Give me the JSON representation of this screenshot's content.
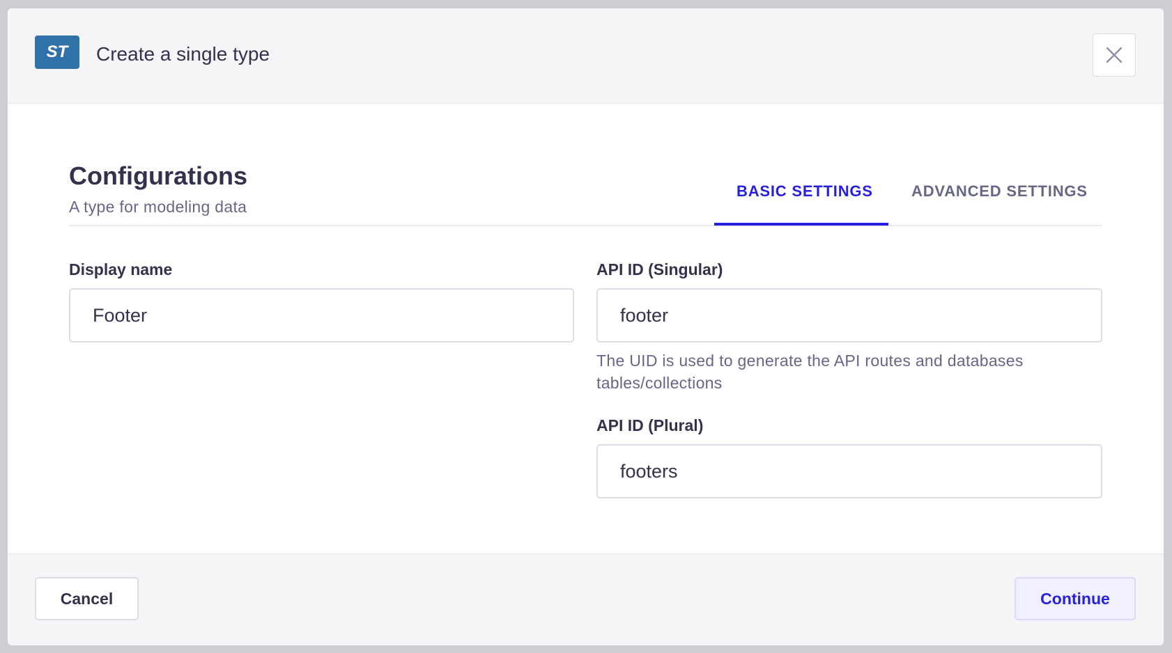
{
  "modal": {
    "badge": "ST",
    "title": "Create a single type",
    "close_icon": "close-icon"
  },
  "section": {
    "heading": "Configurations",
    "subtitle": "A type for modeling data"
  },
  "tabs": [
    {
      "label": "BASIC SETTINGS",
      "active": true
    },
    {
      "label": "ADVANCED SETTINGS",
      "active": false
    }
  ],
  "fields": {
    "display_name": {
      "label": "Display name",
      "value": "Footer"
    },
    "api_singular": {
      "label": "API ID (Singular)",
      "value": "footer",
      "help": "The UID is used to generate the API routes and databases tables/collections"
    },
    "api_plural": {
      "label": "API ID (Plural)",
      "value": "footers"
    }
  },
  "footer": {
    "cancel_label": "Cancel",
    "continue_label": "Continue"
  },
  "colors": {
    "accent": "#271fe0",
    "badge": "#3171a9"
  }
}
